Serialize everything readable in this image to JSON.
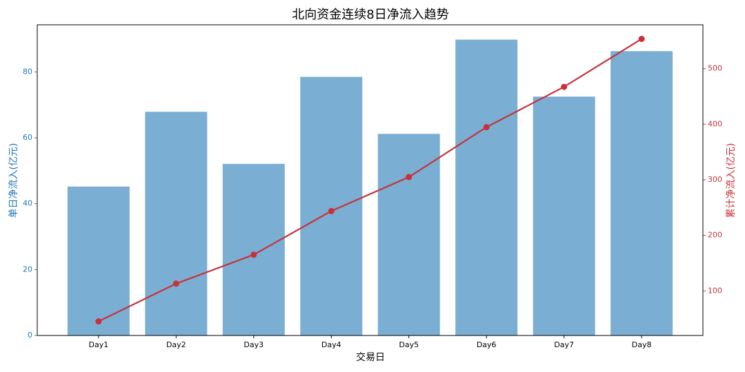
{
  "chart_data": {
    "type": "bar",
    "title": "北向资金连续8日净流入趋势",
    "xlabel": "交易日",
    "ylabel": "单日净流入(亿元)",
    "y2label": "累计净流入(亿元)",
    "categories": [
      "Day1",
      "Day2",
      "Day3",
      "Day4",
      "Day5",
      "Day6",
      "Day7",
      "Day8"
    ],
    "series": [
      {
        "name": "单日净流入",
        "type": "bar",
        "color": "#7aaed3",
        "values": [
          45.2,
          67.9,
          52.1,
          78.5,
          61.2,
          89.8,
          72.5,
          86.3
        ]
      },
      {
        "name": "累计净流入",
        "type": "line",
        "axis": "y2",
        "color": "#c8313a",
        "values": [
          45.2,
          113.1,
          165.2,
          243.7,
          304.9,
          394.7,
          467.2,
          553.5
        ]
      }
    ],
    "ylim": [
      0,
      94.3
    ],
    "yticks": [
      0,
      20,
      40,
      60,
      80
    ],
    "ycolor": "#1f77b4",
    "y2lim": [
      19.8,
      578.9
    ],
    "y2ticks": [
      100,
      200,
      300,
      400,
      500
    ],
    "y2color": "#c8313a"
  }
}
